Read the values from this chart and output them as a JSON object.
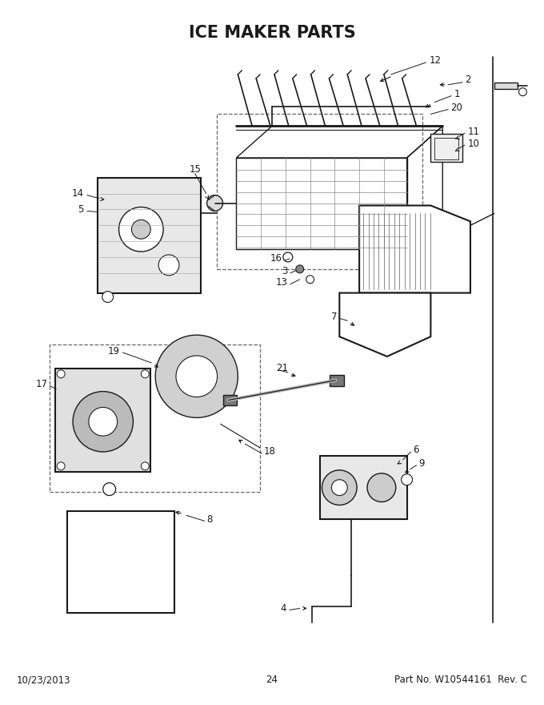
{
  "title": "ICE MAKER PARTS",
  "title_fontsize": 15,
  "title_fontweight": "bold",
  "background_color": "#ffffff",
  "text_color": "#1a1a1a",
  "footer_left": "10/23/2013",
  "footer_center": "24",
  "footer_right": "Part No. W10544161  Rev. C",
  "footer_fontsize": 8.5,
  "line_color": "#1a1a1a",
  "lw": 1.0,
  "lw_thick": 1.5,
  "lw_thin": 0.6
}
